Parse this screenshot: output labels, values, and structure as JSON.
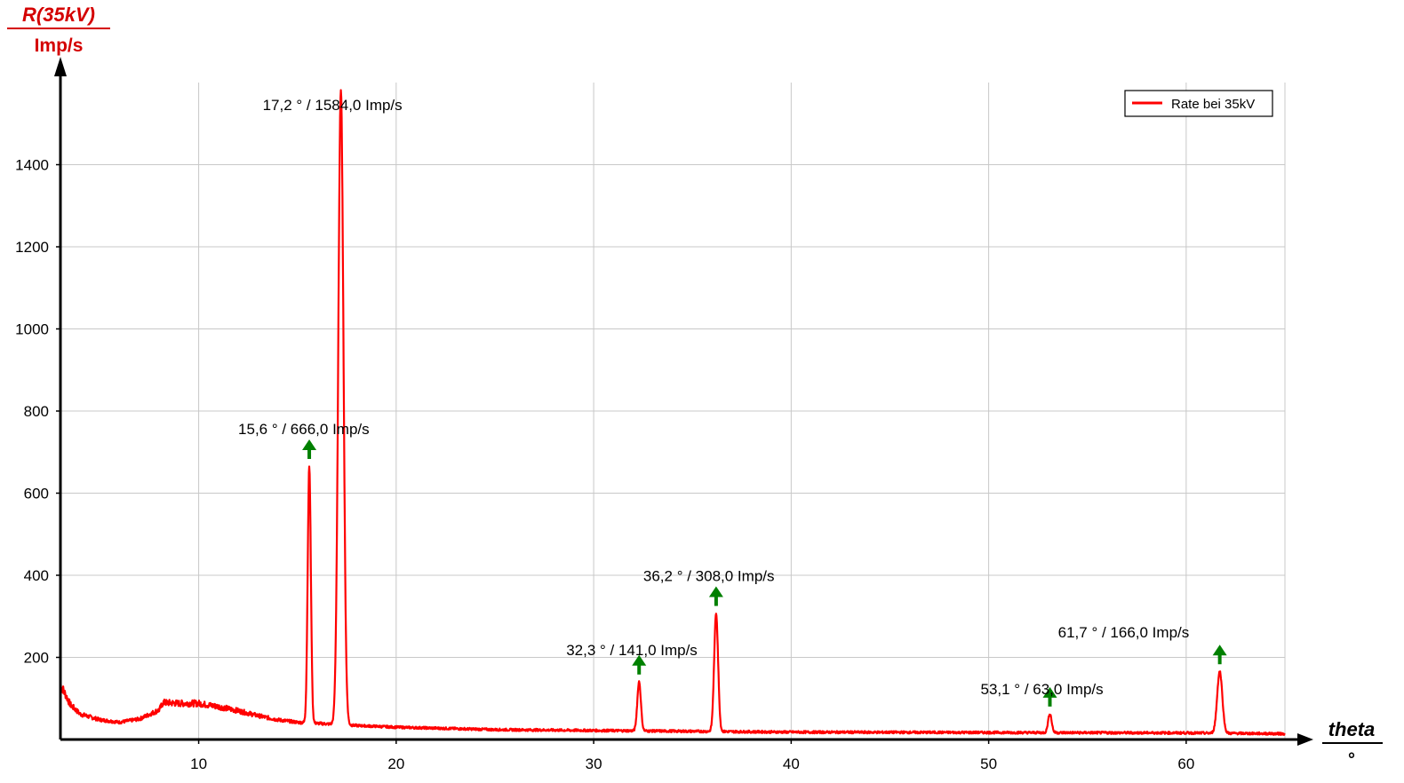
{
  "chart_data": {
    "type": "line",
    "ylabel": "R(35kV)",
    "yunit": "Imp/s",
    "xlabel": "theta",
    "xunit": "°",
    "xlim": [
      3,
      65
    ],
    "ylim": [
      0,
      1600
    ],
    "xticks": [
      10,
      20,
      30,
      40,
      50,
      60
    ],
    "yticks": [
      200,
      400,
      600,
      800,
      1000,
      1200,
      1400
    ],
    "grid": true,
    "legend_position": "top-right",
    "colors": {
      "series": "#ff0000",
      "peak_marker": "#008000",
      "axis": "#000000",
      "grid": "#c8c8c8",
      "axis_title": "#d40000"
    },
    "series": [
      {
        "name": "Rate bei 35kV",
        "baseline": [
          [
            3.0,
            135
          ],
          [
            3.5,
            85
          ],
          [
            4.0,
            62
          ],
          [
            5.0,
            48
          ],
          [
            6.0,
            42
          ],
          [
            7.0,
            50
          ],
          [
            8.0,
            72
          ],
          [
            8.2,
            90
          ],
          [
            9.0,
            88
          ],
          [
            10.0,
            88
          ],
          [
            11.0,
            80
          ],
          [
            12.0,
            70
          ],
          [
            13.0,
            58
          ],
          [
            14.0,
            48
          ],
          [
            15.0,
            42
          ],
          [
            16.5,
            38
          ],
          [
            18.0,
            34
          ],
          [
            20.0,
            30
          ],
          [
            25.0,
            24
          ],
          [
            30.0,
            22
          ],
          [
            35.0,
            20
          ],
          [
            40.0,
            18
          ],
          [
            50.0,
            17
          ],
          [
            60.0,
            16
          ],
          [
            65.0,
            14
          ]
        ],
        "peaks": [
          {
            "x": 15.6,
            "y": 666,
            "w": 0.08
          },
          {
            "x": 17.2,
            "y": 1584,
            "w": 0.13
          },
          {
            "x": 32.3,
            "y": 141,
            "w": 0.09
          },
          {
            "x": 36.2,
            "y": 308,
            "w": 0.1
          },
          {
            "x": 53.1,
            "y": 63,
            "w": 0.09
          },
          {
            "x": 61.7,
            "y": 166,
            "w": 0.13
          }
        ]
      }
    ],
    "annotations": [
      {
        "text": "15,6 ° / 666,0 Imp/s",
        "x": 15.6,
        "y": 666,
        "arrow": true
      },
      {
        "text": "17,2 ° / 1584,0 Imp/s",
        "x": 17.2,
        "y": 1584,
        "arrow": false
      },
      {
        "text": "32,3 ° / 141,0 Imp/s",
        "x": 32.3,
        "y": 141,
        "arrow": true
      },
      {
        "text": "36,2 ° / 308,0 Imp/s",
        "x": 36.2,
        "y": 308,
        "arrow": true
      },
      {
        "text": "53,1 ° / 63,0 Imp/s",
        "x": 53.1,
        "y": 63,
        "arrow": true
      },
      {
        "text": "61,7 ° / 166,0 Imp/s",
        "x": 61.7,
        "y": 166,
        "arrow": true
      }
    ]
  }
}
